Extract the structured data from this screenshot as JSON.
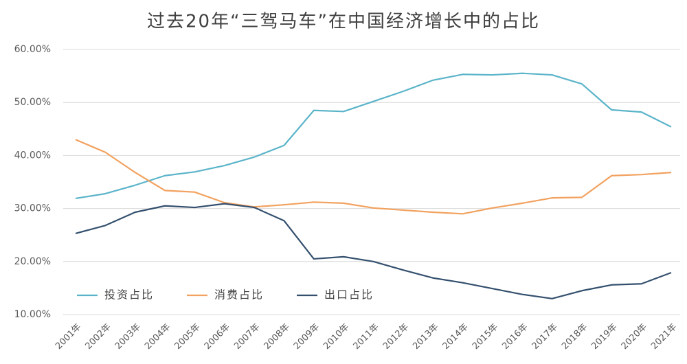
{
  "chart_data": {
    "type": "line",
    "title": "过去20年“三驾马车”在中国经济增长中的占比",
    "categories": [
      "2001年",
      "2002年",
      "2003年",
      "2004年",
      "2005年",
      "2006年",
      "2007年",
      "2008年",
      "2009年",
      "2010年",
      "2011年",
      "2012年",
      "2013年",
      "2014年",
      "2015年",
      "2016年",
      "2017年",
      "2018年",
      "2019年",
      "2020年",
      "2021年"
    ],
    "series": [
      {
        "name": "投资占比",
        "color": "#5ab4c9",
        "values": [
          31.9,
          32.8,
          34.4,
          36.2,
          36.9,
          38.1,
          39.7,
          41.9,
          48.5,
          48.3,
          50.2,
          52.1,
          54.2,
          55.3,
          55.2,
          55.5,
          55.2,
          53.5,
          48.6,
          48.2,
          45.4
        ]
      },
      {
        "name": "消费占比",
        "color": "#f2a15e",
        "values": [
          43.0,
          40.6,
          36.8,
          33.4,
          33.1,
          31.1,
          30.3,
          30.7,
          31.2,
          31.0,
          30.1,
          29.7,
          29.3,
          29.0,
          30.1,
          31.0,
          32.0,
          32.1,
          36.2,
          36.4,
          36.8
        ]
      },
      {
        "name": "出口占比",
        "color": "#34506e",
        "values": [
          25.3,
          26.8,
          29.3,
          30.5,
          30.2,
          30.9,
          30.2,
          27.7,
          20.5,
          20.9,
          20.0,
          18.4,
          16.9,
          16.0,
          14.9,
          13.8,
          13.0,
          14.5,
          15.6,
          15.8,
          17.9
        ]
      }
    ],
    "ylim": [
      10,
      60
    ],
    "yticks": [
      {
        "value": 10,
        "label": "10.00%"
      },
      {
        "value": 20,
        "label": "20.00%"
      },
      {
        "value": 30,
        "label": "30.00%"
      },
      {
        "value": 40,
        "label": "40.00%"
      },
      {
        "value": 50,
        "label": "50.00%"
      },
      {
        "value": 60,
        "label": "60.00%"
      }
    ],
    "grid": true,
    "legend": "lower-left"
  }
}
